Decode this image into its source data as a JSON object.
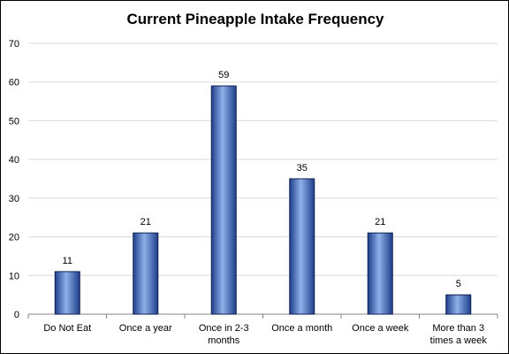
{
  "chart_data": {
    "type": "bar",
    "title": "Current Pineapple Intake Frequency",
    "categories": [
      [
        "Do Not Eat"
      ],
      [
        "Once a year"
      ],
      [
        "Once in 2-3",
        "months"
      ],
      [
        "Once a month"
      ],
      [
        "Once a week"
      ],
      [
        "More than 3",
        "times a week"
      ]
    ],
    "values": [
      11,
      21,
      59,
      35,
      21,
      5
    ],
    "ylim": [
      0,
      70
    ],
    "yticks": [
      0,
      10,
      20,
      30,
      40,
      50,
      60,
      70
    ],
    "grid": true,
    "legend": "none",
    "colors": {
      "bar_fill": "#4472c4",
      "bar_dark": "#1f3f8a",
      "bar_light": "#8fb0ea",
      "bar_edge": "#0d1f4f",
      "gridline": "#d9d9d9",
      "axis": "#868686"
    }
  }
}
